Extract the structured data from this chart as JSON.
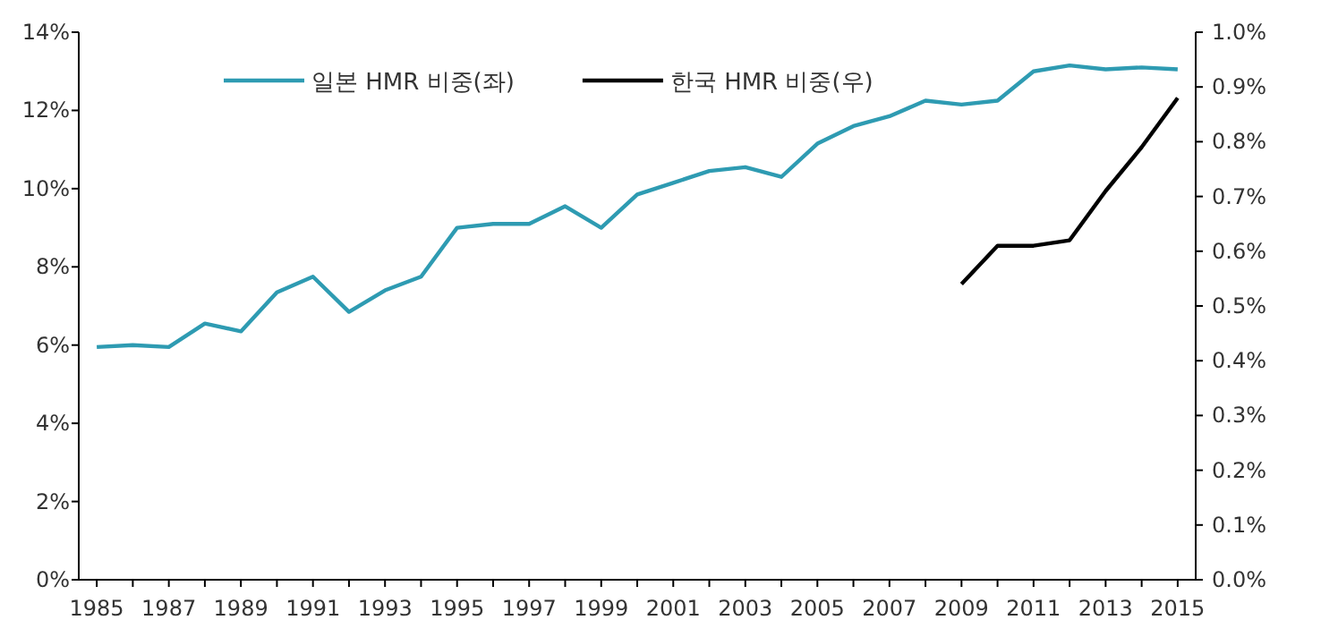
{
  "chart_data": {
    "type": "line",
    "categories": [
      "1985",
      null,
      "1987",
      null,
      "1989",
      null,
      "1991",
      null,
      "1993",
      null,
      "1995",
      null,
      "1997",
      null,
      "1999",
      null,
      "2001",
      null,
      "2003",
      null,
      "2005",
      null,
      "2007",
      null,
      "2009",
      null,
      "2011",
      null,
      "2013",
      null,
      "2015"
    ],
    "series": [
      {
        "name": "일본 HMR 비중(좌)",
        "color": "#2e9bb2",
        "values": [
          5.95,
          6.0,
          5.95,
          6.55,
          6.35,
          7.35,
          7.75,
          6.85,
          7.4,
          7.75,
          9.0,
          9.1,
          9.1,
          9.55,
          9.0,
          9.85,
          10.15,
          10.45,
          10.55,
          10.3,
          11.15,
          11.6,
          11.85,
          12.25,
          12.15,
          12.25,
          13.0,
          13.15,
          13.05,
          13.1,
          13.05
        ]
      },
      {
        "name": "한국 HMR 비중(우)",
        "color": "#000000",
        "axis": "y2",
        "values": [
          null,
          null,
          null,
          null,
          null,
          null,
          null,
          null,
          null,
          null,
          null,
          null,
          null,
          null,
          null,
          null,
          null,
          null,
          null,
          null,
          null,
          null,
          null,
          null,
          0.54,
          0.61,
          0.61,
          0.62,
          0.71,
          0.79,
          0.88
        ]
      }
    ],
    "ylim": [
      0,
      14
    ],
    "yticks": [
      {
        "value": 0,
        "label": "0%"
      },
      {
        "value": 2,
        "label": "2%"
      },
      {
        "value": 4,
        "label": "4%"
      },
      {
        "value": 6,
        "label": "6%"
      },
      {
        "value": 8,
        "label": "8%"
      },
      {
        "value": 10,
        "label": "10%"
      },
      {
        "value": 12,
        "label": "12%"
      },
      {
        "value": 14,
        "label": "14%"
      }
    ],
    "y2lim": [
      0,
      1.0
    ],
    "y2ticks": [
      {
        "value": 0,
        "label": "0.0%"
      },
      {
        "value": 0.1,
        "label": "0.1%"
      },
      {
        "value": 0.2,
        "label": "0.2%"
      },
      {
        "value": 0.3,
        "label": "0.3%"
      },
      {
        "value": 0.4,
        "label": "0.4%"
      },
      {
        "value": 0.5,
        "label": "0.5%"
      },
      {
        "value": 0.6,
        "label": "0.6%"
      },
      {
        "value": 0.7,
        "label": "0.7%"
      },
      {
        "value": 0.8,
        "label": "0.8%"
      },
      {
        "value": 0.9,
        "label": "0.9%"
      },
      {
        "value": 1.0,
        "label": "1.0%"
      }
    ],
    "legend": "top",
    "grid": false,
    "marker": "none",
    "line_style": "solid"
  }
}
